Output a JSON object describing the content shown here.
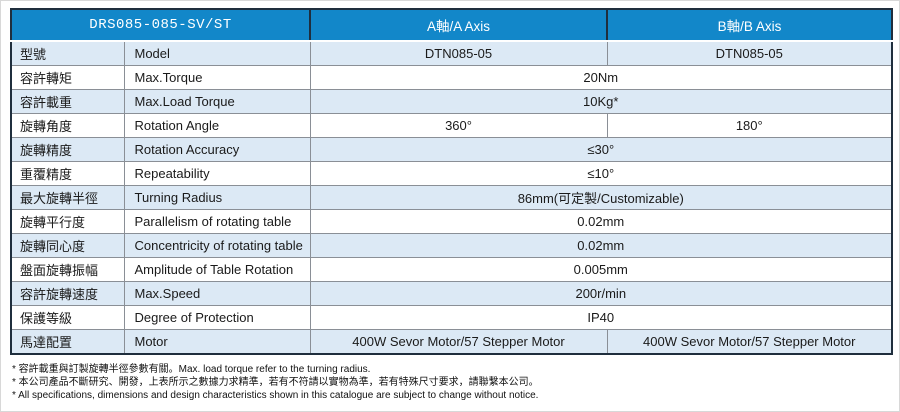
{
  "colors": {
    "header_blue": "#1287c9",
    "row_shade": "#dce9f5",
    "frame_dark": "#1f2e3d",
    "grid_gray": "#8a8f96"
  },
  "table": {
    "header": {
      "series": "DRS085-085-SV/ST",
      "col_a": "A軸/A Axis",
      "col_b": "B軸/B Axis"
    },
    "rows": [
      {
        "zh": "型號",
        "en": "Model",
        "span": false,
        "a": "DTN085-05",
        "b": "DTN085-05",
        "shaded": true
      },
      {
        "zh": "容許轉矩",
        "en": "Max.Torque",
        "span": true,
        "value": "20Nm",
        "shaded": false
      },
      {
        "zh": "容許載重",
        "en": "Max.Load Torque",
        "span": true,
        "value": "10Kg*",
        "shaded": true
      },
      {
        "zh": "旋轉角度",
        "en": "Rotation Angle",
        "span": false,
        "a": "360°",
        "b": "180°",
        "shaded": false
      },
      {
        "zh": "旋轉精度",
        "en": "Rotation Accuracy",
        "span": true,
        "value": "≤30°",
        "shaded": true
      },
      {
        "zh": "重覆精度",
        "en": "Repeatability",
        "span": true,
        "value": "≤10°",
        "shaded": false
      },
      {
        "zh": "最大旋轉半徑",
        "en": "Turning Radius",
        "span": true,
        "value": "86mm(可定製/Customizable)",
        "shaded": true
      },
      {
        "zh": "旋轉平行度",
        "en": "Parallelism of rotating table",
        "span": true,
        "value": "0.02mm",
        "shaded": false
      },
      {
        "zh": "旋轉同心度",
        "en": "Concentricity of rotating table",
        "span": true,
        "value": "0.02mm",
        "shaded": true
      },
      {
        "zh": "盤面旋轉振幅",
        "en": "Amplitude of Table Rotation",
        "span": true,
        "value": "0.005mm",
        "shaded": false
      },
      {
        "zh": "容許旋轉速度",
        "en": "Max.Speed",
        "span": true,
        "value": "200r/min",
        "shaded": true
      },
      {
        "zh": "保護等級",
        "en": "Degree of Protection",
        "span": true,
        "value": "IP40",
        "shaded": false
      },
      {
        "zh": "馬達配置",
        "en": "Motor",
        "span": false,
        "a": "400W Sevor Motor/57 Stepper Motor",
        "b": "400W Sevor Motor/57 Stepper Motor",
        "shaded": true
      }
    ]
  },
  "footnotes": [
    "* 容許載重與訂製旋轉半徑參數有關。Max. load torque refer to the turning radius.",
    "* 本公司產品不斷研究、開發，上表所示之數據力求精準，若有不符請以實物為準，若有特殊尺寸要求，請聯繫本公司。",
    "* All specifications, dimensions and design characteristics shown in this catalogue are subject to change without notice."
  ]
}
